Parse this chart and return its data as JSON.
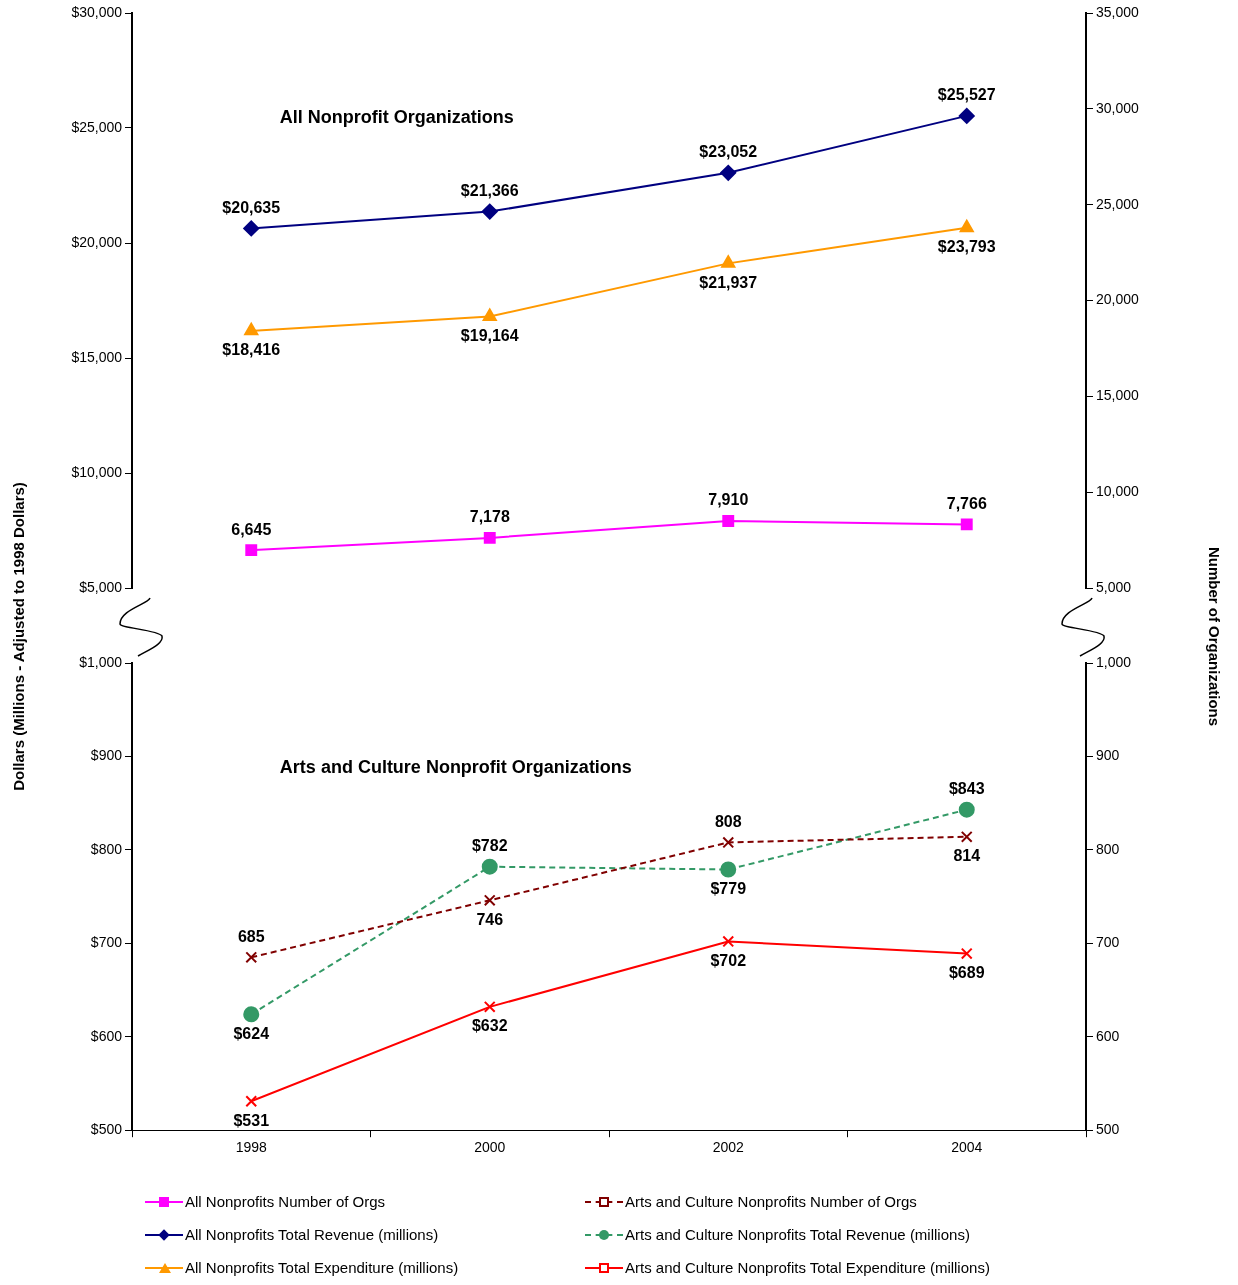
{
  "chart_data": [
    {
      "type": "line",
      "categories": [
        "1998",
        "2000",
        "2002",
        "2004"
      ],
      "ylabel": "Dollars (Millions - Adjusted to 1998 Dollars)",
      "y2label": "Number of Organizations",
      "annotations": [
        "All Nonprofit Organizations"
      ],
      "ylim": [
        5000,
        30000
      ],
      "yticks": [
        {
          "value": 5000,
          "label": "$5,000"
        },
        {
          "value": 10000,
          "label": "$10,000"
        },
        {
          "value": 15000,
          "label": "$15,000"
        },
        {
          "value": 20000,
          "label": "$20,000"
        },
        {
          "value": 25000,
          "label": "$25,000"
        },
        {
          "value": 30000,
          "label": "$30,000"
        }
      ],
      "y2lim": [
        5000,
        35000
      ],
      "y2ticks": [
        {
          "value": 5000,
          "label": "5,000"
        },
        {
          "value": 10000,
          "label": "10,000"
        },
        {
          "value": 15000,
          "label": "15,000"
        },
        {
          "value": 20000,
          "label": "20,000"
        },
        {
          "value": 25000,
          "label": "25,000"
        },
        {
          "value": 30000,
          "label": "30,000"
        },
        {
          "value": 35000,
          "label": "35,000"
        }
      ],
      "tick_labels": "y",
      "grid": false,
      "legend": "bottom",
      "series": [
        {
          "name": "All Nonprofits Number of Orgs",
          "color": "#ff00ff",
          "marker": "square",
          "line_style": "solid",
          "values": [
            6645,
            7178,
            7910,
            7766
          ],
          "value_labels": [
            "6,645",
            "7,178",
            "7,910",
            "7,766"
          ]
        },
        {
          "name": "All Nonprofits Total Revenue (millions)",
          "color": "#000080",
          "marker": "diamond",
          "line_style": "solid",
          "values": [
            20635,
            21366,
            23052,
            25527
          ],
          "value_labels": [
            "$20,635",
            "$21,366",
            "$23,052",
            "$25,527"
          ]
        },
        {
          "name": "All Nonprofits Total Expenditure (millions)",
          "color": "#ff9900",
          "marker": "triangle",
          "line_style": "solid",
          "axis": "y2",
          "values": [
            18416,
            19164,
            21937,
            23793
          ],
          "value_labels": [
            "$18,416",
            "$19,164",
            "$21,937",
            "$23,793"
          ]
        }
      ]
    },
    {
      "type": "line",
      "categories": [
        "1998",
        "2000",
        "2002",
        "2004"
      ],
      "annotations": [
        "Arts and Culture Nonprofit Organizations"
      ],
      "ylim": [
        500,
        1000
      ],
      "yticks": [
        {
          "value": 500,
          "label": "$500"
        },
        {
          "value": 600,
          "label": "$600"
        },
        {
          "value": 700,
          "label": "$700"
        },
        {
          "value": 800,
          "label": "$800"
        },
        {
          "value": 900,
          "label": "$900"
        },
        {
          "value": 1000,
          "label": "$1,000"
        }
      ],
      "y2lim": [
        500,
        1000
      ],
      "y2ticks": [
        {
          "value": 500,
          "label": "500"
        },
        {
          "value": 600,
          "label": "600"
        },
        {
          "value": 700,
          "label": "700"
        },
        {
          "value": 800,
          "label": "800"
        },
        {
          "value": 900,
          "label": "900"
        },
        {
          "value": 1000,
          "label": "1,000"
        }
      ],
      "grid": false,
      "legend": "bottom",
      "series": [
        {
          "name": "Arts and Culture Nonprofits Number of Orgs",
          "color": "#800000",
          "marker": "cross",
          "line_style": "dashed",
          "axis": "y2",
          "values": [
            685,
            746,
            808,
            814
          ],
          "value_labels": [
            "685",
            "746",
            "808",
            "814"
          ]
        },
        {
          "name": "Arts and Culture Nonprofits Total Revenue (millions)",
          "color": "#339966",
          "marker": "circle",
          "line_style": "dashed",
          "values": [
            624,
            782,
            779,
            843
          ],
          "value_labels": [
            "$624",
            "$782",
            "$779",
            "$843"
          ]
        },
        {
          "name": "Arts and Culture Nonprofits Total Expenditure (millions)",
          "color": "#ff0000",
          "marker": "cross",
          "line_style": "solid",
          "values": [
            531,
            632,
            702,
            689
          ],
          "value_labels": [
            "$531",
            "$632",
            "$702",
            "$689"
          ]
        }
      ]
    }
  ]
}
